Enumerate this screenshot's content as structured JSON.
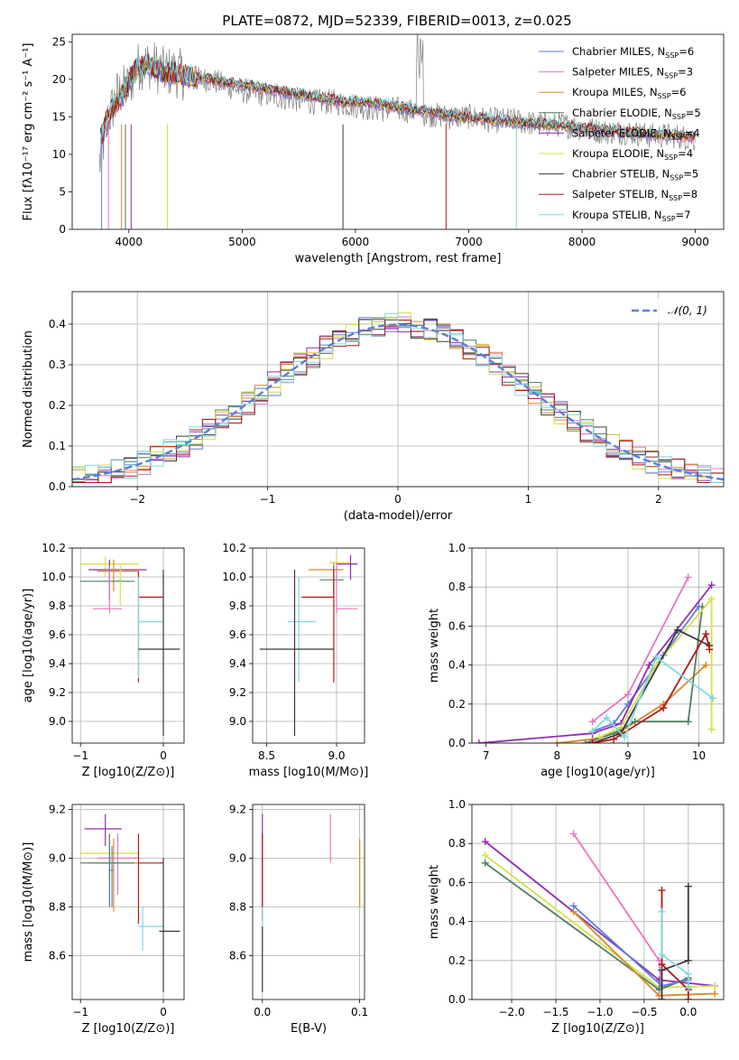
{
  "colors": {
    "chabrier_miles": "#5b7fd6",
    "salpeter_miles": "#e377c2",
    "kroupa_miles": "#d98a2a",
    "chabrier_elodie": "#4f7f5f",
    "salpeter_elodie": "#8f2fb0",
    "kroupa_elodie": "#d5e04a",
    "chabrier_stelib": "#3a3a3a",
    "salpeter_stelib": "#b01818",
    "kroupa_stelib": "#7fd8df",
    "observed": "#808080",
    "normal": "#5b7fd6"
  },
  "chart_data": [
    {
      "id": "spectrum",
      "type": "line",
      "title": "PLATE=0872, MJD=52339, FIBERID=0013, z=0.025",
      "xlabel": "wavelength [Angstrom, rest frame]",
      "ylabel": "Flux [fλ10⁻¹⁷ erg cm⁻² s⁻¹ A⁻¹]",
      "xlim": [
        3500,
        9250
      ],
      "ylim": [
        0,
        26
      ],
      "xticks": [
        4000,
        5000,
        6000,
        7000,
        8000,
        9000
      ],
      "yticks": [
        0,
        5,
        10,
        15,
        20,
        25
      ],
      "legend_position": "upper-right",
      "legend": [
        {
          "text": "Chabrier MILES, N_SSP=6",
          "key": "chabrier_miles",
          "pre": "Chabrier MILES, N",
          "n": "6"
        },
        {
          "text": "Salpeter MILES, N_SSP=3",
          "key": "salpeter_miles",
          "pre": "Salpeter MILES, N",
          "n": "3"
        },
        {
          "text": "Kroupa MILES, N_SSP=6",
          "key": "kroupa_miles",
          "pre": "Kroupa MILES, N",
          "n": "6"
        },
        {
          "text": "Chabrier ELODIE, N_SSP=5",
          "key": "chabrier_elodie",
          "pre": "Chabrier ELODIE, N",
          "n": "5"
        },
        {
          "text": "Salpeter ELODIE, N_SSP=4",
          "key": "salpeter_elodie",
          "pre": "Salpeter ELODIE, N",
          "n": "4"
        },
        {
          "text": "Kroupa ELODIE, N_SSP=4",
          "key": "kroupa_elodie",
          "pre": "Kroupa ELODIE, N",
          "n": "4"
        },
        {
          "text": "Chabrier STELIB, N_SSP=5",
          "key": "chabrier_stelib",
          "pre": "Chabrier STELIB, N",
          "n": "5"
        },
        {
          "text": "Salpeter STELIB, N_SSP=8",
          "key": "salpeter_stelib",
          "pre": "Salpeter STELIB, N",
          "n": "8"
        },
        {
          "text": "Kroupa STELIB, N_SSP=7",
          "key": "kroupa_stelib",
          "pre": "Kroupa STELIB, N",
          "n": "7"
        }
      ],
      "observed": {
        "x": [
          3750,
          3800,
          3850,
          3900,
          3950,
          4000,
          4050,
          4100,
          4150,
          4200,
          4300,
          4400,
          4500,
          4600,
          4700,
          4800,
          4900,
          5000,
          5200,
          5400,
          5600,
          5800,
          6000,
          6200,
          6400,
          6600,
          6800,
          7000,
          7200,
          7400,
          7600,
          7800,
          8000,
          8200,
          8400,
          8600,
          8800,
          9000
        ],
        "y": [
          9,
          14,
          16,
          18,
          18.5,
          19,
          21,
          22,
          22,
          22,
          21,
          21,
          20.5,
          20,
          20,
          19.5,
          19,
          18.5,
          18,
          17.5,
          17,
          17,
          16.5,
          16,
          16,
          15.5,
          15,
          15,
          14.5,
          14.5,
          14,
          14,
          13.5,
          13,
          13,
          12.5,
          12.5,
          12
        ]
      },
      "model": {
        "x": [
          3750,
          3850,
          3950,
          4050,
          4150,
          4300,
          4500,
          4700,
          4900,
          5100,
          5300,
          5500,
          5700,
          5900,
          6100,
          6300,
          6500,
          6700,
          6900,
          7100,
          7300,
          7500,
          7700,
          7900,
          8100,
          8300,
          8500,
          8700,
          8900,
          9000
        ],
        "y": [
          12,
          16,
          18,
          21,
          22,
          21,
          20.5,
          20,
          19.5,
          19,
          18.5,
          18,
          17.5,
          17,
          17,
          16.5,
          16,
          15.5,
          15,
          14.8,
          14.5,
          14.2,
          14,
          13.7,
          13.4,
          13.1,
          12.8,
          12.6,
          12.4,
          12.3
        ]
      },
      "absorption_lines": [
        3760,
        3820,
        3935,
        3970,
        4020,
        4340,
        5890,
        6800,
        7420
      ]
    },
    {
      "id": "residual-histogram",
      "type": "step",
      "xlabel": "(data-model)/error",
      "ylabel": "Normed distribution",
      "xlim": [
        -2.5,
        2.5
      ],
      "ylim": [
        0,
        0.48
      ],
      "xticks": [
        -2,
        -1,
        0,
        1,
        2
      ],
      "yticks": [
        0,
        0.1,
        0.2,
        0.3,
        0.4
      ],
      "legend": "𝒩(0, 1)",
      "bin_width": 0.1
    },
    {
      "id": "age-vs-z",
      "type": "errorbar",
      "xlabel": "Z [log10(Z/Z⊙)]",
      "ylabel": "age  [log10(age/yr)]",
      "xlim": [
        -1.1,
        0.25
      ],
      "ylim": [
        8.85,
        10.2
      ],
      "xticks": [
        -1,
        0
      ],
      "yticks": [
        9.0,
        9.2,
        9.4,
        9.6,
        9.8,
        10.0,
        10.2
      ],
      "points": [
        {
          "key": "kroupa_elodie",
          "x": -0.7,
          "y": 10.09,
          "xlo": -1.0,
          "xhi": -0.3,
          "ylo": 10.0,
          "yhi": 10.14
        },
        {
          "key": "salpeter_elodie",
          "x": -0.65,
          "y": 10.05,
          "xlo": -0.9,
          "xhi": -0.2,
          "ylo": 9.95,
          "yhi": 10.12
        },
        {
          "key": "kroupa_miles",
          "x": -0.6,
          "y": 10.04,
          "xlo": -0.8,
          "xhi": -0.3,
          "ylo": 9.9,
          "yhi": 10.12
        },
        {
          "key": "chabrier_elodie",
          "x": -0.65,
          "y": 9.97,
          "xlo": -1.0,
          "xhi": -0.35,
          "ylo": 9.84,
          "yhi": 10.1
        },
        {
          "key": "salpeter_miles",
          "x": -0.65,
          "y": 9.78,
          "xlo": -0.85,
          "xhi": -0.5,
          "ylo": 9.75,
          "yhi": 10.08
        },
        {
          "key": "kroupa_elodie",
          "x": -0.52,
          "y": 9.98,
          "xlo": -0.55,
          "xhi": -0.5,
          "ylo": 9.8,
          "yhi": 10.08
        },
        {
          "key": "salpeter_stelib",
          "x": -0.3,
          "y": 9.86,
          "xlo": -0.3,
          "xhi": 0.0,
          "ylo": 9.27,
          "yhi": 10.04
        },
        {
          "key": "kroupa_stelib",
          "x": -0.3,
          "y": 9.69,
          "xlo": -0.3,
          "xhi": 0.0,
          "ylo": 9.3,
          "yhi": 10.0
        },
        {
          "key": "chabrier_stelib",
          "x": 0.0,
          "y": 9.5,
          "xlo": -0.3,
          "xhi": 0.2,
          "ylo": 8.9,
          "yhi": 10.05
        }
      ]
    },
    {
      "id": "age-vs-mass",
      "type": "errorbar",
      "xlabel": "mass [log10(M/M⊙)]",
      "ylabel": "",
      "xlim": [
        8.4,
        9.2
      ],
      "ylim": [
        8.85,
        10.2
      ],
      "xticks": [
        8.5,
        9.0
      ],
      "yticks": [
        9.0,
        9.2,
        9.4,
        9.6,
        9.8,
        10.0,
        10.2
      ],
      "points": [
        {
          "key": "kroupa_elodie",
          "x": 9.0,
          "y": 10.1,
          "xlo": 8.95,
          "xhi": 9.1,
          "ylo": 10.0,
          "yhi": 10.15
        },
        {
          "key": "salpeter_elodie",
          "x": 9.1,
          "y": 10.09,
          "xlo": 9.0,
          "xhi": 9.15,
          "ylo": 9.98,
          "yhi": 10.15
        },
        {
          "key": "kroupa_miles",
          "x": 8.98,
          "y": 10.05,
          "xlo": 8.8,
          "xhi": 9.05,
          "ylo": 9.9,
          "yhi": 10.1
        },
        {
          "key": "chabrier_elodie",
          "x": 8.98,
          "y": 9.98,
          "xlo": 8.88,
          "xhi": 9.05,
          "ylo": 9.85,
          "yhi": 10.08
        },
        {
          "key": "salpeter_miles",
          "x": 9.0,
          "y": 9.78,
          "xlo": 9.0,
          "xhi": 9.15,
          "ylo": 9.75,
          "yhi": 10.1
        },
        {
          "key": "salpeter_stelib",
          "x": 8.98,
          "y": 9.86,
          "xlo": 8.75,
          "xhi": 8.98,
          "ylo": 9.27,
          "yhi": 10.05
        },
        {
          "key": "kroupa_stelib",
          "x": 8.73,
          "y": 9.69,
          "xlo": 8.65,
          "xhi": 8.85,
          "ylo": 9.27,
          "yhi": 10.0
        },
        {
          "key": "chabrier_stelib",
          "x": 8.7,
          "y": 9.5,
          "xlo": 8.45,
          "xhi": 8.98,
          "ylo": 8.9,
          "yhi": 10.05
        }
      ]
    },
    {
      "id": "weight-vs-age",
      "type": "line",
      "xlabel": "age  [log10(age/yr)]",
      "ylabel": "mass weight",
      "xlim": [
        6.8,
        10.35
      ],
      "ylim": [
        0,
        1
      ],
      "xticks": [
        7,
        8,
        9,
        10
      ],
      "yticks": [
        0.0,
        0.2,
        0.4,
        0.6,
        0.8,
        1.0
      ],
      "series": [
        {
          "key": "chabrier_miles",
          "x": [
            8.5,
            8.8,
            9.0,
            9.5,
            10.0
          ],
          "y": [
            0.06,
            0.1,
            0.2,
            0.45,
            0.7
          ]
        },
        {
          "key": "salpeter_miles",
          "x": [
            8.5,
            9.0,
            9.85
          ],
          "y": [
            0.11,
            0.25,
            0.85
          ]
        },
        {
          "key": "kroupa_miles",
          "x": [
            8.0,
            8.5,
            8.9,
            9.5,
            10.1
          ],
          "y": [
            0.0,
            0.02,
            0.06,
            0.2,
            0.4
          ]
        },
        {
          "key": "chabrier_elodie",
          "x": [
            8.4,
            8.8,
            9.1,
            9.85,
            10.05
          ],
          "y": [
            0.0,
            0.05,
            0.11,
            0.11,
            0.7
          ]
        },
        {
          "key": "salpeter_elodie",
          "x": [
            6.9,
            8.5,
            8.9,
            9.3,
            10.18
          ],
          "y": [
            0.0,
            0.05,
            0.1,
            0.4,
            0.81
          ]
        },
        {
          "key": "kroupa_elodie",
          "x": [
            8.6,
            8.9,
            9.4,
            10.18,
            10.18
          ],
          "y": [
            0.03,
            0.08,
            0.4,
            0.74,
            0.07
          ]
        },
        {
          "key": "chabrier_stelib",
          "x": [
            8.5,
            8.9,
            9.7,
            10.15
          ],
          "y": [
            0.0,
            0.05,
            0.58,
            0.5
          ]
        },
        {
          "key": "salpeter_stelib",
          "x": [
            8.5,
            8.8,
            9.5,
            10.1,
            10.15
          ],
          "y": [
            0.0,
            0.02,
            0.18,
            0.56,
            0.48
          ]
        },
        {
          "key": "kroupa_stelib",
          "x": [
            8.5,
            8.7,
            8.95,
            9.4,
            10.2
          ],
          "y": [
            0.06,
            0.13,
            0.03,
            0.44,
            0.23
          ]
        }
      ]
    },
    {
      "id": "mass-vs-z",
      "type": "errorbar",
      "xlabel": "Z [log10(Z/Z⊙)]",
      "ylabel": "mass [log10(M/M⊙)]",
      "xlim": [
        -1.1,
        0.25
      ],
      "ylim": [
        8.42,
        9.22
      ],
      "xticks": [
        -1,
        0
      ],
      "yticks": [
        8.6,
        8.8,
        9.0,
        9.2
      ],
      "points": [
        {
          "key": "salpeter_elodie",
          "x": -0.7,
          "y": 9.12,
          "xlo": -0.95,
          "xhi": -0.5,
          "ylo": 9.05,
          "yhi": 9.18
        },
        {
          "key": "kroupa_elodie",
          "x": -0.65,
          "y": 9.02,
          "xlo": -1.0,
          "xhi": -0.3,
          "ylo": 8.9,
          "yhi": 9.1
        },
        {
          "key": "salpeter_miles",
          "x": -0.55,
          "y": 9.0,
          "xlo": -0.8,
          "xhi": -0.3,
          "ylo": 8.85,
          "yhi": 9.1
        },
        {
          "key": "kroupa_miles",
          "x": -0.6,
          "y": 8.98,
          "xlo": -0.9,
          "xhi": -0.3,
          "ylo": 8.78,
          "yhi": 9.08
        },
        {
          "key": "chabrier_elodie",
          "x": -0.65,
          "y": 8.98,
          "xlo": -1.0,
          "xhi": -0.35,
          "ylo": 8.8,
          "yhi": 9.1
        },
        {
          "key": "chabrier_miles",
          "x": -0.62,
          "y": 8.95,
          "xlo": -0.65,
          "xhi": -0.6,
          "ylo": 8.8,
          "yhi": 9.05
        },
        {
          "key": "salpeter_stelib",
          "x": -0.3,
          "y": 8.98,
          "xlo": -0.3,
          "xhi": 0.0,
          "ylo": 8.73,
          "yhi": 9.1
        },
        {
          "key": "kroupa_stelib",
          "x": -0.25,
          "y": 8.72,
          "xlo": -0.3,
          "xhi": 0.0,
          "ylo": 8.62,
          "yhi": 8.8
        },
        {
          "key": "chabrier_stelib",
          "x": 0.0,
          "y": 8.7,
          "xlo": -0.05,
          "xhi": 0.2,
          "ylo": 8.45,
          "yhi": 9.0
        }
      ]
    },
    {
      "id": "mass-vs-ebv",
      "type": "errorbar",
      "xlabel": "E(B-V)",
      "ylabel": "",
      "xlim": [
        -0.01,
        0.105
      ],
      "ylim": [
        8.42,
        9.22
      ],
      "xticks": [
        0.0,
        0.1
      ],
      "yticks": [
        8.6,
        8.8,
        9.0,
        9.2
      ],
      "points": [
        {
          "key": "salpeter_elodie",
          "x": 0.0,
          "y": 9.0,
          "ylo": 8.8,
          "yhi": 9.18
        },
        {
          "key": "salpeter_stelib",
          "x": 0.0,
          "y": 8.98,
          "ylo": 8.75,
          "yhi": 9.1
        },
        {
          "key": "kroupa_stelib",
          "x": 0.0,
          "y": 8.72,
          "ylo": 8.62,
          "yhi": 8.8
        },
        {
          "key": "chabrier_stelib",
          "x": 0.0,
          "y": 8.6,
          "ylo": 8.45,
          "yhi": 8.72
        },
        {
          "key": "salpeter_miles",
          "x": 0.07,
          "y": 9.05,
          "ylo": 8.98,
          "yhi": 9.18
        },
        {
          "key": "kroupa_miles",
          "x": 0.1,
          "y": 8.95,
          "ylo": 8.8,
          "yhi": 9.08
        }
      ]
    },
    {
      "id": "weight-vs-z",
      "type": "line",
      "xlabel": "Z [log10(Z/Z⊙)]",
      "ylabel": "mass weight",
      "xlim": [
        -2.45,
        0.4
      ],
      "ylim": [
        0,
        1
      ],
      "xticks": [
        -2.0,
        -1.5,
        -1.0,
        -0.5,
        0.0
      ],
      "yticks": [
        0.0,
        0.2,
        0.4,
        0.6,
        0.8,
        1.0
      ],
      "series": [
        {
          "key": "salpeter_elodie",
          "x": [
            -2.3,
            -0.33,
            0.3
          ],
          "y": [
            0.81,
            0.1,
            0.07
          ]
        },
        {
          "key": "kroupa_elodie",
          "x": [
            -2.3,
            -0.33,
            0.3
          ],
          "y": [
            0.74,
            0.06,
            0.07
          ]
        },
        {
          "key": "chabrier_elodie",
          "x": [
            -2.3,
            -0.33,
            0.0
          ],
          "y": [
            0.7,
            0.05,
            0.11
          ]
        },
        {
          "key": "salpeter_miles",
          "x": [
            -1.3,
            -0.33,
            -0.3
          ],
          "y": [
            0.85,
            0.2,
            0.02
          ]
        },
        {
          "key": "kroupa_miles",
          "x": [
            -1.3,
            -0.33,
            0.3
          ],
          "y": [
            0.45,
            0.02,
            0.03
          ]
        },
        {
          "key": "chabrier_miles",
          "x": [
            -1.3,
            -0.3,
            0.0
          ],
          "y": [
            0.48,
            0.07,
            0.1
          ]
        },
        {
          "key": "salpeter_stelib",
          "x": [
            -0.3,
            -0.3,
            0.0,
            0.0
          ],
          "y": [
            0.56,
            0.18,
            0.05,
            0.0
          ]
        },
        {
          "key": "chabrier_stelib",
          "x": [
            -0.3,
            -0.3,
            0.0,
            0.0
          ],
          "y": [
            0.0,
            0.15,
            0.2,
            0.58
          ]
        },
        {
          "key": "kroupa_stelib",
          "x": [
            -0.3,
            -0.3,
            0.0,
            0.0
          ],
          "y": [
            0.45,
            0.23,
            0.13,
            0.06
          ]
        }
      ]
    }
  ]
}
